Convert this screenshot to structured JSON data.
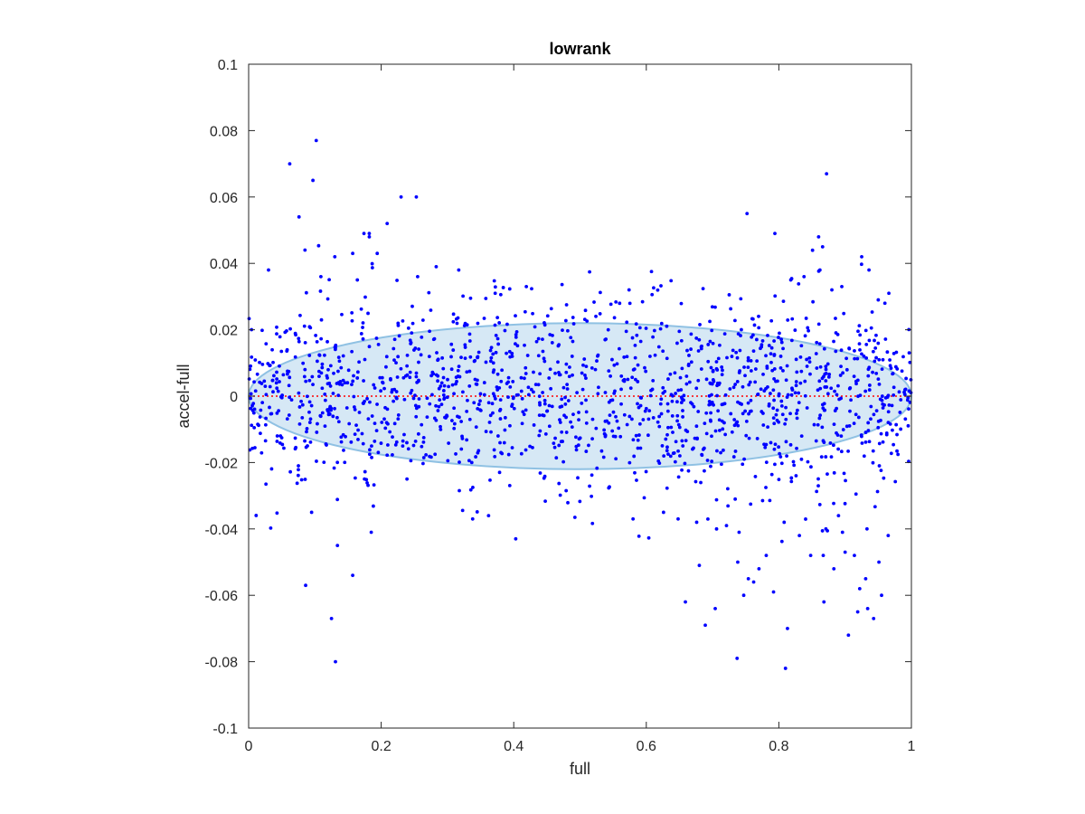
{
  "chart_data": {
    "type": "scatter",
    "title": "lowrank",
    "xlabel": "full",
    "ylabel": "accel-full",
    "xlim": [
      0,
      1
    ],
    "ylim": [
      -0.1,
      0.1
    ],
    "x_ticks": [
      0,
      0.2,
      0.4,
      0.6,
      0.8,
      1
    ],
    "x_tick_labels": [
      "0",
      "0.2",
      "0.4",
      "0.6",
      "0.8",
      "1"
    ],
    "y_ticks": [
      -0.1,
      -0.08,
      -0.06,
      -0.04,
      -0.02,
      0,
      0.02,
      0.04,
      0.06,
      0.08,
      0.1
    ],
    "y_tick_labels": [
      "-0.1",
      "-0.08",
      "-0.06",
      "-0.04",
      "-0.02",
      "0",
      "0.02",
      "0.04",
      "0.06",
      "0.08",
      "0.1"
    ],
    "grid": false,
    "colors": {
      "points": "#0000ff",
      "ellipse_fill": "#d6e8f5",
      "ellipse_edge": "#8fc1e3",
      "zero_line": "#ff0000"
    },
    "zero_line": {
      "y": 0,
      "style": "dotted"
    },
    "ellipse": {
      "center": [
        0.5,
        0
      ],
      "x_semi_axis": 0.5,
      "y_semi_axis": 0.022
    },
    "series": [
      {
        "values": [
          [
            0.062,
            0.07
          ],
          [
            0.102,
            0.077
          ],
          [
            0.097,
            0.065
          ],
          [
            0.076,
            0.054
          ],
          [
            0.872,
            0.067
          ],
          [
            0.23,
            0.06
          ],
          [
            0.253,
            0.06
          ],
          [
            0.209,
            0.052
          ],
          [
            0.174,
            0.049
          ],
          [
            0.182,
            0.049
          ],
          [
            0.752,
            0.055
          ],
          [
            0.794,
            0.049
          ],
          [
            0.86,
            0.048
          ],
          [
            0.866,
            0.045
          ],
          [
            0.862,
            0.038
          ],
          [
            0.085,
            0.044
          ],
          [
            0.194,
            0.043
          ],
          [
            0.157,
            0.043
          ],
          [
            0.925,
            0.042
          ],
          [
            0.936,
            0.038
          ],
          [
            0.03,
            0.038
          ],
          [
            0.13,
            0.042
          ],
          [
            0.109,
            0.036
          ],
          [
            0.164,
            0.035
          ],
          [
            0.283,
            0.039
          ],
          [
            0.317,
            0.038
          ],
          [
            0.255,
            0.036
          ],
          [
            0.838,
            0.036
          ],
          [
            0.818,
            0.035
          ],
          [
            0.372,
            0.031
          ],
          [
            0.419,
            0.033
          ],
          [
            0.574,
            0.032
          ],
          [
            0.88,
            0.032
          ],
          [
            0.895,
            0.033
          ],
          [
            0.966,
            0.031
          ],
          [
            0.96,
            0.028
          ],
          [
            0.95,
            0.029
          ],
          [
            0.131,
            -0.08
          ],
          [
            0.125,
            -0.067
          ],
          [
            0.086,
            -0.057
          ],
          [
            0.134,
            -0.045
          ],
          [
            0.157,
            -0.054
          ],
          [
            0.403,
            -0.043
          ],
          [
            0.737,
            -0.079
          ],
          [
            0.81,
            -0.082
          ],
          [
            0.813,
            -0.07
          ],
          [
            0.905,
            -0.072
          ],
          [
            0.943,
            -0.067
          ],
          [
            0.659,
            -0.062
          ],
          [
            0.689,
            -0.069
          ],
          [
            0.704,
            -0.064
          ],
          [
            0.868,
            -0.062
          ],
          [
            0.955,
            -0.06
          ],
          [
            0.934,
            -0.064
          ],
          [
            0.68,
            -0.051
          ],
          [
            0.754,
            -0.055
          ],
          [
            0.747,
            -0.06
          ],
          [
            0.792,
            -0.059
          ],
          [
            0.919,
            -0.065
          ],
          [
            0.951,
            -0.05
          ],
          [
            0.848,
            -0.048
          ],
          [
            0.883,
            -0.052
          ],
          [
            0.9,
            -0.047
          ],
          [
            0.914,
            -0.048
          ],
          [
            0.867,
            -0.048
          ],
          [
            0.738,
            -0.05
          ],
          [
            0.781,
            -0.048
          ],
          [
            0.77,
            -0.052
          ],
          [
            0.762,
            -0.056
          ],
          [
            0.931,
            -0.055
          ],
          [
            0.922,
            -0.058
          ],
          [
            0.095,
            -0.035
          ],
          [
            0.185,
            -0.041
          ],
          [
            0.338,
            -0.037
          ],
          [
            0.362,
            -0.036
          ],
          [
            0.626,
            -0.035
          ],
          [
            0.648,
            -0.037
          ],
          [
            0.676,
            -0.038
          ],
          [
            0.721,
            -0.039
          ],
          [
            0.74,
            -0.041
          ],
          [
            0.831,
            -0.042
          ],
          [
            0.871,
            -0.04
          ],
          [
            0.896,
            -0.041
          ],
          [
            0.933,
            -0.04
          ],
          [
            0.58,
            -0.037
          ],
          [
            0.965,
            -0.042
          ],
          [
            0.89,
            -0.036
          ],
          [
            0.808,
            -0.038
          ]
        ]
      }
    ]
  }
}
